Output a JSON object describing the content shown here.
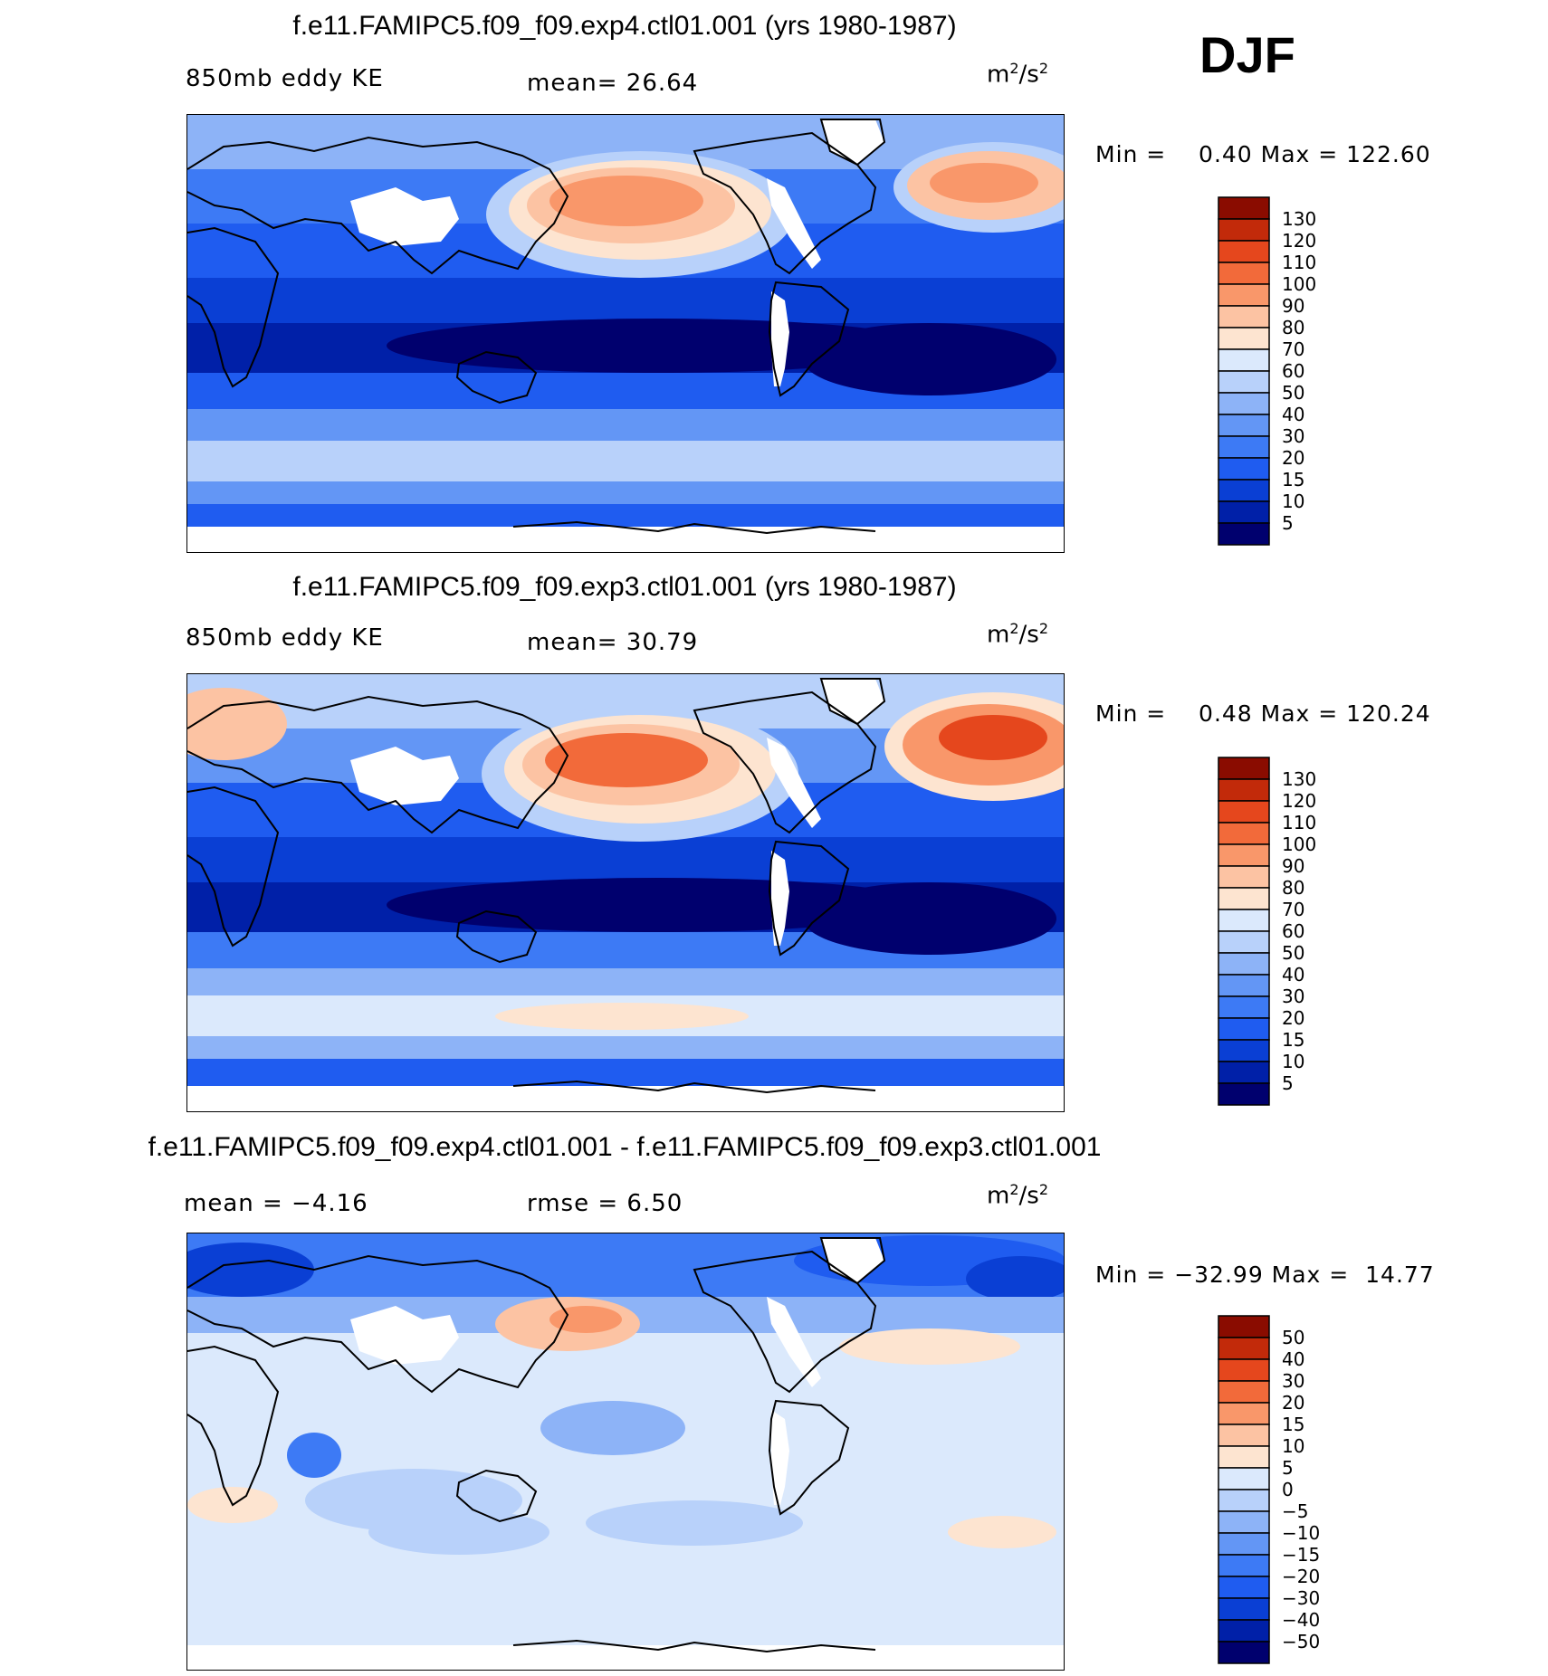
{
  "season": "DJF",
  "units_base": "m",
  "units_exp1": "2",
  "units_sep": "/s",
  "units_exp2": "2",
  "panels": [
    {
      "title": "f.e11.FAMIPC5.f09_f09.exp4.ctl01.001 (yrs 1980-1987)",
      "left_label": "850mb eddy KE",
      "mid_label": "mean=   26.64",
      "minmax": "Min =    0.40 Max = 122.60"
    },
    {
      "title": "f.e11.FAMIPC5.f09_f09.exp3.ctl01.001 (yrs 1980-1987)",
      "left_label": "850mb eddy KE",
      "mid_label": "mean=   30.79",
      "minmax": "Min =    0.48 Max = 120.24"
    },
    {
      "title": "f.e11.FAMIPC5.f09_f09.exp4.ctl01.001 - f.e11.FAMIPC5.f09_f09.exp3.ctl01.001",
      "left_label": "mean =   −4.16",
      "mid_label": "rmse =    6.50",
      "minmax": "Min = −32.99 Max =  14.77"
    }
  ],
  "chart_data": [
    {
      "type": "heatmap",
      "title": "f.e11.FAMIPC5.f09_f09.exp4.ctl01.001 (yrs 1980-1987)",
      "variable": "850mb eddy KE",
      "units": "m2/s2",
      "mean": 26.64,
      "min": 0.4,
      "max": 122.6,
      "levels": [
        5,
        10,
        15,
        20,
        30,
        40,
        50,
        60,
        70,
        80,
        90,
        100,
        110,
        120,
        130
      ],
      "level_labels": [
        "5",
        "10",
        "15",
        "20",
        "30",
        "40",
        "50",
        "60",
        "70",
        "80",
        "90",
        "100",
        "110",
        "120",
        "130"
      ],
      "colors": [
        "#00006e",
        "#0020a8",
        "#0a3fd4",
        "#1f5cf0",
        "#3d7af5",
        "#6396f5",
        "#8db3f7",
        "#b8d1fa",
        "#dbe9fc",
        "#fde4d0",
        "#fcc3a3",
        "#f9976a",
        "#f26a3a",
        "#e5471d",
        "#c22a0a",
        "#8a0c00"
      ]
    },
    {
      "type": "heatmap",
      "title": "f.e11.FAMIPC5.f09_f09.exp3.ctl01.001 (yrs 1980-1987)",
      "variable": "850mb eddy KE",
      "units": "m2/s2",
      "mean": 30.79,
      "min": 0.48,
      "max": 120.24,
      "levels": [
        5,
        10,
        15,
        20,
        30,
        40,
        50,
        60,
        70,
        80,
        90,
        100,
        110,
        120,
        130
      ],
      "level_labels": [
        "5",
        "10",
        "15",
        "20",
        "30",
        "40",
        "50",
        "60",
        "70",
        "80",
        "90",
        "100",
        "110",
        "120",
        "130"
      ],
      "colors": [
        "#00006e",
        "#0020a8",
        "#0a3fd4",
        "#1f5cf0",
        "#3d7af5",
        "#6396f5",
        "#8db3f7",
        "#b8d1fa",
        "#dbe9fc",
        "#fde4d0",
        "#fcc3a3",
        "#f9976a",
        "#f26a3a",
        "#e5471d",
        "#c22a0a",
        "#8a0c00"
      ]
    },
    {
      "type": "heatmap",
      "title": "f.e11.FAMIPC5.f09_f09.exp4.ctl01.001 - f.e11.FAMIPC5.f09_f09.exp3.ctl01.001",
      "units": "m2/s2",
      "mean": -4.16,
      "rmse": 6.5,
      "min": -32.99,
      "max": 14.77,
      "levels": [
        -50,
        -40,
        -30,
        -20,
        -15,
        -10,
        -5,
        0,
        5,
        10,
        15,
        20,
        30,
        40,
        50
      ],
      "level_labels": [
        "−50",
        "−40",
        "−30",
        "−20",
        "−15",
        "−10",
        "−5",
        "0",
        "5",
        "10",
        "15",
        "20",
        "30",
        "40",
        "50"
      ],
      "colors": [
        "#00006e",
        "#0020a8",
        "#0a3fd4",
        "#1f5cf0",
        "#3d7af5",
        "#6396f5",
        "#8db3f7",
        "#b8d1fa",
        "#dbe9fc",
        "#fde4d0",
        "#fcc3a3",
        "#f9976a",
        "#f26a3a",
        "#e5471d",
        "#c22a0a",
        "#8a0c00"
      ]
    }
  ]
}
